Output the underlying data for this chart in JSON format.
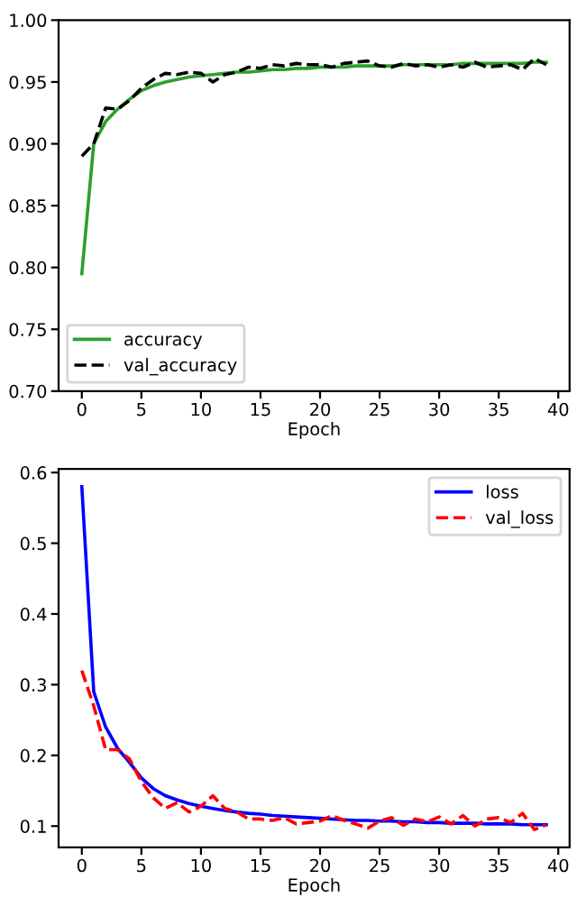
{
  "chart_data": [
    {
      "type": "line",
      "xlabel": "Epoch",
      "x": [
        0,
        1,
        2,
        3,
        4,
        5,
        6,
        7,
        8,
        9,
        10,
        11,
        12,
        13,
        14,
        15,
        16,
        17,
        18,
        19,
        20,
        21,
        22,
        23,
        24,
        25,
        26,
        27,
        28,
        29,
        30,
        31,
        32,
        33,
        34,
        35,
        36,
        37,
        38,
        39
      ],
      "series": [
        {
          "name": "accuracy",
          "color": "#2ca02c",
          "line_style": "solid",
          "values": [
            0.795,
            0.9,
            0.918,
            0.928,
            0.936,
            0.943,
            0.947,
            0.95,
            0.952,
            0.954,
            0.955,
            0.956,
            0.957,
            0.958,
            0.958,
            0.959,
            0.96,
            0.96,
            0.961,
            0.961,
            0.962,
            0.962,
            0.962,
            0.963,
            0.963,
            0.963,
            0.963,
            0.964,
            0.964,
            0.964,
            0.964,
            0.964,
            0.965,
            0.965,
            0.965,
            0.965,
            0.965,
            0.965,
            0.966,
            0.966
          ]
        },
        {
          "name": "val_accuracy",
          "color": "#000000",
          "line_style": "dashed",
          "values": [
            0.89,
            0.9,
            0.929,
            0.928,
            0.935,
            0.945,
            0.952,
            0.957,
            0.956,
            0.958,
            0.957,
            0.95,
            0.956,
            0.958,
            0.962,
            0.961,
            0.964,
            0.963,
            0.965,
            0.964,
            0.964,
            0.962,
            0.965,
            0.966,
            0.967,
            0.963,
            0.962,
            0.965,
            0.963,
            0.964,
            0.962,
            0.964,
            0.962,
            0.966,
            0.962,
            0.963,
            0.964,
            0.96,
            0.969,
            0.964
          ]
        }
      ],
      "xlim": [
        -1.95,
        40.95
      ],
      "ylim": [
        0.7,
        1.0
      ],
      "xticks": [
        0,
        5,
        10,
        15,
        20,
        25,
        30,
        35,
        40
      ],
      "yticks": [
        {
          "value": 0.7,
          "label": "0.70"
        },
        {
          "value": 0.75,
          "label": "0.75"
        },
        {
          "value": 0.8,
          "label": "0.80"
        },
        {
          "value": 0.85,
          "label": "0.85"
        },
        {
          "value": 0.9,
          "label": "0.90"
        },
        {
          "value": 0.95,
          "label": "0.95"
        },
        {
          "value": 1.0,
          "label": "1.00"
        }
      ],
      "grid": false,
      "legend": "bottom left"
    },
    {
      "type": "line",
      "xlabel": "Epoch",
      "x": [
        0,
        1,
        2,
        3,
        4,
        5,
        6,
        7,
        8,
        9,
        10,
        11,
        12,
        13,
        14,
        15,
        16,
        17,
        18,
        19,
        20,
        21,
        22,
        23,
        24,
        25,
        26,
        27,
        28,
        29,
        30,
        31,
        32,
        33,
        34,
        35,
        36,
        37,
        38,
        39
      ],
      "series": [
        {
          "name": "loss",
          "color": "#0000ff",
          "line_style": "solid",
          "values": [
            0.58,
            0.29,
            0.24,
            0.21,
            0.19,
            0.168,
            0.153,
            0.143,
            0.137,
            0.132,
            0.128,
            0.125,
            0.122,
            0.12,
            0.118,
            0.117,
            0.115,
            0.114,
            0.113,
            0.112,
            0.111,
            0.11,
            0.109,
            0.108,
            0.108,
            0.107,
            0.107,
            0.106,
            0.106,
            0.105,
            0.105,
            0.104,
            0.104,
            0.104,
            0.103,
            0.103,
            0.103,
            0.102,
            0.102,
            0.102
          ]
        },
        {
          "name": "val_loss",
          "color": "#ff0000",
          "line_style": "dashed",
          "values": [
            0.32,
            0.27,
            0.208,
            0.208,
            0.195,
            0.163,
            0.14,
            0.125,
            0.133,
            0.12,
            0.128,
            0.143,
            0.125,
            0.12,
            0.11,
            0.11,
            0.108,
            0.112,
            0.103,
            0.105,
            0.107,
            0.115,
            0.108,
            0.103,
            0.097,
            0.107,
            0.112,
            0.101,
            0.11,
            0.106,
            0.113,
            0.103,
            0.115,
            0.1,
            0.11,
            0.112,
            0.105,
            0.118,
            0.095,
            0.102
          ]
        }
      ],
      "xlim": [
        -1.95,
        40.95
      ],
      "ylim": [
        0.07,
        0.605
      ],
      "xticks": [
        0,
        5,
        10,
        15,
        20,
        25,
        30,
        35,
        40
      ],
      "yticks": [
        0.1,
        0.2,
        0.3,
        0.4,
        0.5,
        0.6
      ],
      "grid": false,
      "legend": "top right"
    }
  ]
}
